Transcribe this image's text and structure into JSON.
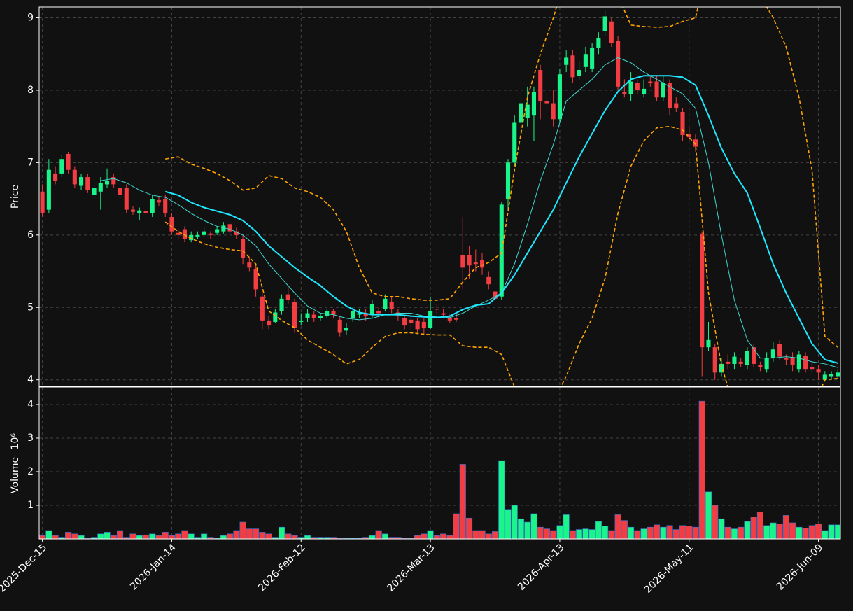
{
  "chart_data": {
    "type": "candlestick",
    "xlim": [
      -0.5,
      123.4
    ],
    "xticks": [
      {
        "value": 0,
        "label": "2025-Dec-15"
      },
      {
        "value": 20,
        "label": "2026-Jan-14"
      },
      {
        "value": 40,
        "label": "2026-Feb-12"
      },
      {
        "value": 60,
        "label": "2026-Mar-13"
      },
      {
        "value": 80,
        "label": "2026-Apr-13"
      },
      {
        "value": 100,
        "label": "2026-May-11"
      },
      {
        "value": 120,
        "label": "2026-Jun-09"
      }
    ],
    "grid": true,
    "ylabel": "Price",
    "ylim": [
      3.91,
      9.15
    ],
    "yticks": [
      4,
      5,
      6,
      7,
      8,
      9
    ],
    "up_color": "#19f58a",
    "down_color": "#f23d43",
    "open": [
      6.6,
      6.35,
      6.85,
      6.85,
      7.12,
      6.9,
      6.68,
      6.8,
      6.55,
      6.6,
      6.7,
      6.8,
      6.65,
      6.65,
      6.35,
      6.3,
      6.33,
      6.3,
      6.48,
      6.5,
      6.25,
      6.03,
      6.08,
      5.93,
      5.98,
      6.0,
      6.02,
      6.03,
      6.05,
      6.15,
      6.05,
      5.95,
      5.62,
      5.53,
      5.15,
      4.82,
      4.8,
      4.95,
      5.18,
      5.08,
      4.8,
      4.85,
      4.9,
      4.85,
      4.88,
      4.95,
      4.83,
      4.68,
      4.85,
      4.9,
      4.92,
      4.9,
      4.95,
      4.98,
      5.08,
      4.93,
      4.85,
      4.83,
      4.82,
      4.8,
      4.72,
      4.98,
      4.92,
      4.85,
      4.85,
      5.72,
      5.72,
      5.62,
      5.65,
      5.42,
      5.22,
      5.15,
      6.5,
      7.0,
      7.55,
      7.62,
      7.65,
      8.28,
      7.85,
      7.82,
      7.6,
      8.35,
      8.48,
      8.2,
      8.32,
      8.3,
      8.58,
      8.82,
      8.95,
      8.68,
      7.98,
      7.95,
      8.1,
      7.95,
      8.12,
      8.12,
      7.9,
      8.1,
      7.82,
      7.7,
      7.4,
      7.32,
      6.02,
      4.45,
      4.45,
      4.1,
      4.25,
      4.22,
      4.25,
      4.2,
      4.45,
      4.2,
      4.15,
      4.3,
      4.5,
      4.3,
      4.3,
      4.15,
      4.33,
      4.18,
      4.15,
      4.0,
      4.05,
      4.05
    ],
    "high": [
      6.7,
      7.05,
      6.95,
      7.1,
      7.15,
      6.95,
      6.85,
      6.85,
      6.7,
      6.8,
      6.92,
      6.85,
      6.98,
      6.7,
      6.4,
      6.38,
      6.38,
      6.55,
      6.52,
      6.55,
      6.3,
      6.08,
      6.12,
      6.05,
      6.05,
      6.1,
      6.05,
      6.12,
      6.18,
      6.18,
      6.1,
      6.0,
      5.7,
      5.6,
      5.2,
      4.88,
      4.98,
      5.18,
      5.28,
      5.12,
      4.92,
      4.98,
      4.95,
      4.92,
      4.98,
      4.98,
      4.88,
      4.78,
      5.0,
      4.98,
      4.98,
      5.1,
      5.0,
      5.18,
      5.15,
      4.98,
      4.9,
      4.88,
      4.85,
      4.85,
      5.15,
      5.05,
      4.98,
      4.9,
      4.92,
      6.25,
      5.85,
      5.8,
      5.75,
      5.5,
      5.3,
      6.45,
      7.05,
      7.65,
      7.95,
      8.05,
      8.05,
      8.35,
      7.95,
      8.0,
      8.3,
      8.55,
      8.55,
      8.4,
      8.6,
      8.65,
      8.8,
      9.1,
      9.0,
      8.75,
      8.15,
      8.25,
      8.15,
      8.15,
      8.2,
      8.2,
      8.2,
      8.15,
      7.9,
      7.75,
      7.5,
      7.4,
      6.05,
      4.8,
      4.5,
      4.3,
      4.35,
      4.38,
      4.3,
      4.45,
      4.5,
      4.25,
      4.38,
      4.52,
      4.55,
      4.35,
      4.38,
      4.4,
      4.38,
      4.25,
      4.2,
      4.12,
      4.12,
      4.15
    ],
    "low": [
      6.25,
      6.3,
      6.7,
      6.8,
      6.85,
      6.65,
      6.62,
      6.58,
      6.5,
      6.35,
      6.65,
      6.65,
      6.5,
      6.3,
      6.28,
      6.2,
      6.25,
      6.25,
      6.4,
      6.25,
      6.0,
      5.95,
      5.9,
      5.9,
      5.95,
      5.98,
      5.95,
      6.0,
      6.02,
      6.0,
      5.95,
      5.6,
      5.5,
      5.15,
      4.7,
      4.7,
      4.78,
      4.9,
      5.05,
      4.65,
      4.75,
      4.8,
      4.8,
      4.82,
      4.85,
      4.85,
      4.6,
      4.62,
      4.8,
      4.85,
      4.82,
      4.85,
      4.88,
      4.95,
      4.92,
      4.82,
      4.7,
      4.7,
      4.65,
      4.62,
      4.7,
      4.9,
      4.85,
      4.78,
      4.8,
      5.25,
      5.4,
      5.5,
      5.45,
      5.25,
      5.05,
      5.1,
      6.35,
      6.95,
      7.4,
      7.5,
      7.3,
      7.6,
      7.75,
      7.5,
      7.55,
      8.25,
      8.1,
      8.15,
      8.25,
      8.25,
      8.5,
      8.75,
      8.6,
      8.0,
      7.9,
      7.85,
      7.95,
      7.9,
      8.05,
      7.85,
      7.85,
      7.65,
      7.7,
      7.3,
      7.3,
      7.15,
      4.05,
      4.4,
      4.0,
      4.05,
      4.15,
      4.15,
      4.18,
      4.15,
      4.18,
      4.12,
      4.1,
      4.25,
      4.28,
      4.2,
      4.12,
      4.1,
      4.1,
      4.1,
      4.0,
      3.98,
      4.0,
      4.02
    ],
    "close": [
      6.3,
      6.9,
      6.75,
      7.05,
      6.9,
      6.7,
      6.8,
      6.62,
      6.65,
      6.72,
      6.75,
      6.7,
      6.55,
      6.35,
      6.32,
      6.34,
      6.3,
      6.5,
      6.45,
      6.3,
      6.05,
      6.0,
      5.95,
      6.0,
      6.0,
      6.05,
      6.0,
      6.08,
      6.13,
      6.05,
      6.0,
      5.68,
      5.55,
      5.25,
      4.82,
      4.75,
      4.93,
      5.12,
      5.1,
      4.72,
      4.82,
      4.92,
      4.85,
      4.88,
      4.95,
      4.9,
      4.65,
      4.72,
      4.95,
      4.92,
      4.88,
      5.05,
      4.92,
      5.12,
      4.98,
      4.88,
      4.75,
      4.78,
      4.7,
      4.72,
      4.95,
      4.97,
      4.9,
      4.82,
      4.83,
      5.55,
      5.58,
      5.6,
      5.55,
      5.32,
      5.12,
      6.42,
      7.0,
      7.55,
      7.82,
      7.8,
      7.98,
      7.85,
      7.82,
      7.6,
      8.22,
      8.45,
      8.18,
      8.28,
      8.5,
      8.58,
      8.72,
      9.02,
      8.65,
      8.05,
      7.95,
      8.12,
      8.0,
      8.02,
      8.1,
      7.9,
      8.1,
      7.75,
      7.75,
      7.38,
      7.35,
      7.22,
      4.45,
      4.55,
      4.1,
      4.22,
      4.22,
      4.32,
      4.22,
      4.4,
      4.22,
      4.18,
      4.3,
      4.42,
      4.32,
      4.28,
      4.2,
      4.35,
      4.15,
      4.15,
      4.1,
      4.07,
      4.08,
      4.1
    ],
    "overlays": {
      "x": [
        9,
        11,
        13,
        15,
        17,
        19,
        21,
        23,
        25,
        27,
        29,
        31,
        33,
        35,
        37,
        39,
        41,
        43,
        45,
        47,
        49,
        51,
        53,
        55,
        57,
        59,
        61,
        63,
        65,
        67,
        69,
        71,
        73,
        75,
        77,
        79,
        81,
        83,
        85,
        87,
        89,
        91,
        93,
        95,
        97,
        99,
        101,
        103,
        105,
        107,
        109,
        111,
        113,
        115,
        117,
        119,
        121,
        123
      ],
      "series": [
        {
          "color": "#40d8d0",
          "width": 1,
          "dashed": false,
          "values": [
            6.75,
            6.78,
            6.72,
            6.62,
            6.55,
            6.52,
            6.42,
            6.3,
            6.2,
            6.12,
            6.08,
            6.0,
            5.85,
            5.6,
            5.4,
            5.2,
            5.02,
            4.92,
            4.9,
            4.85,
            4.83,
            4.85,
            4.9,
            4.92,
            4.92,
            4.88,
            4.87,
            4.86,
            4.92,
            5.02,
            5.1,
            5.2,
            5.6,
            6.15,
            6.75,
            7.25,
            7.85,
            8.0,
            8.15,
            8.35,
            8.45,
            8.38,
            8.25,
            8.15,
            8.05,
            7.95,
            7.75,
            7.0,
            6.0,
            5.1,
            4.55,
            4.3,
            4.3,
            4.32,
            4.3,
            4.25,
            4.22,
            4.17
          ]
        },
        {
          "color": "#1ee8ff",
          "width": 2,
          "dashed": false,
          "values": [
            null,
            null,
            null,
            null,
            null,
            6.6,
            6.55,
            6.45,
            6.38,
            6.33,
            6.28,
            6.2,
            6.05,
            5.85,
            5.7,
            5.55,
            5.42,
            5.3,
            5.15,
            5.02,
            4.93,
            4.9,
            4.9,
            4.9,
            4.88,
            4.87,
            4.86,
            4.88,
            4.97,
            5.03,
            5.05,
            5.2,
            5.45,
            5.75,
            6.05,
            6.35,
            6.72,
            7.08,
            7.4,
            7.72,
            7.98,
            8.15,
            8.2,
            8.2,
            8.2,
            8.18,
            8.07,
            7.65,
            7.2,
            6.85,
            6.58,
            6.1,
            5.6,
            5.2,
            4.85,
            4.5,
            4.28,
            4.23
          ]
        },
        {
          "color": "#ffa500",
          "width": 1.6,
          "dashed": true,
          "values": [
            null,
            null,
            null,
            null,
            null,
            7.05,
            7.08,
            6.98,
            6.92,
            6.85,
            6.75,
            6.62,
            6.65,
            6.82,
            6.78,
            6.65,
            6.6,
            6.52,
            6.35,
            6.05,
            5.55,
            5.2,
            5.15,
            5.15,
            5.12,
            5.1,
            5.1,
            5.12,
            5.35,
            5.55,
            5.62,
            5.75,
            6.9,
            7.9,
            8.5,
            9.0,
            9.6,
            9.8,
            9.8,
            9.6,
            9.3,
            8.9,
            8.88,
            8.87,
            8.88,
            8.95,
            9.0,
            9.8,
            10.5,
            10.3,
            9.8,
            9.3,
            9.0,
            8.6,
            7.9,
            6.9,
            4.6,
            4.45
          ]
        },
        {
          "color": "#ffa500",
          "width": 1.6,
          "dashed": true,
          "values": [
            null,
            null,
            null,
            null,
            null,
            6.18,
            6.05,
            5.95,
            5.88,
            5.83,
            5.8,
            5.78,
            5.6,
            4.95,
            4.82,
            4.72,
            4.55,
            4.45,
            4.35,
            4.22,
            4.28,
            4.45,
            4.6,
            4.65,
            4.65,
            4.63,
            4.62,
            4.62,
            4.47,
            4.45,
            4.45,
            4.35,
            3.9,
            3.5,
            3.4,
            3.7,
            4.05,
            4.5,
            4.85,
            5.4,
            6.3,
            6.95,
            7.3,
            7.48,
            7.5,
            7.45,
            7.25,
            5.2,
            4.2,
            3.6,
            3.3,
            3.1,
            3.0,
            3.1,
            3.3,
            3.6,
            4.0,
            4.02
          ]
        }
      ]
    },
    "volume": {
      "ylabel": "Volume",
      "offset_text": "10⁶",
      "ylim": [
        0,
        4.52
      ],
      "yticks": [
        1,
        2,
        3,
        4
      ],
      "edge_color": "#3a6fd0",
      "values": [
        0.1,
        0.25,
        0.1,
        0.05,
        0.2,
        0.15,
        0.1,
        0.02,
        0.05,
        0.15,
        0.2,
        0.1,
        0.25,
        0.05,
        0.15,
        0.1,
        0.12,
        0.15,
        0.1,
        0.2,
        0.1,
        0.15,
        0.25,
        0.15,
        0.05,
        0.15,
        0.05,
        0.02,
        0.1,
        0.15,
        0.25,
        0.5,
        0.3,
        0.3,
        0.2,
        0.15,
        0.05,
        0.35,
        0.15,
        0.1,
        0.05,
        0.1,
        0.05,
        0.05,
        0.05,
        0.05,
        0.02,
        0.02,
        0.02,
        0.02,
        0.05,
        0.1,
        0.25,
        0.15,
        0.05,
        0.05,
        0.02,
        0.02,
        0.1,
        0.15,
        0.25,
        0.1,
        0.15,
        0.1,
        0.75,
        2.22,
        0.62,
        0.25,
        0.25,
        0.15,
        0.22,
        2.33,
        0.88,
        1.0,
        0.6,
        0.5,
        0.75,
        0.35,
        0.3,
        0.25,
        0.4,
        0.72,
        0.25,
        0.28,
        0.3,
        0.28,
        0.52,
        0.38,
        0.25,
        0.72,
        0.55,
        0.35,
        0.25,
        0.3,
        0.35,
        0.42,
        0.35,
        0.4,
        0.28,
        0.4,
        0.38,
        0.35,
        4.1,
        1.4,
        1.0,
        0.6,
        0.35,
        0.3,
        0.35,
        0.52,
        0.65,
        0.8,
        0.4,
        0.48,
        0.45,
        0.7,
        0.48,
        0.35,
        0.32,
        0.4,
        0.45,
        0.25,
        0.42,
        0.42
      ]
    }
  }
}
